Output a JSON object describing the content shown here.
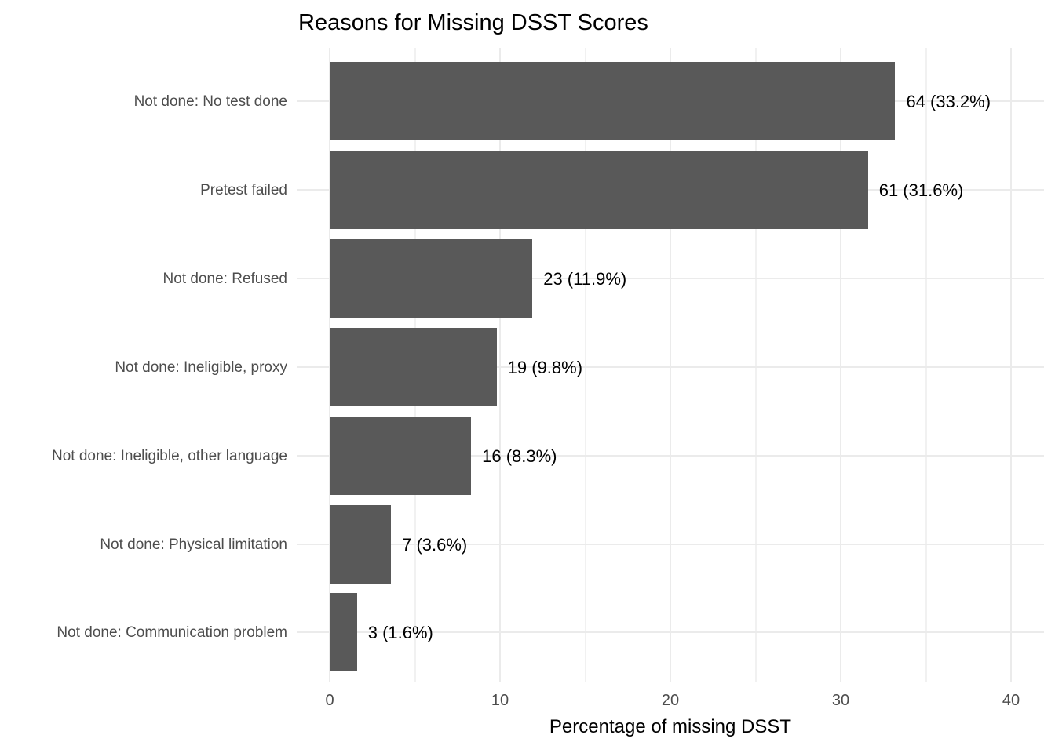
{
  "chart_data": {
    "type": "bar",
    "orientation": "horizontal",
    "title": "Reasons for Missing DSST Scores",
    "xlabel": "Percentage of missing DSST",
    "ylabel": "",
    "categories": [
      "Not done: No test done",
      "Pretest failed",
      "Not done: Refused",
      "Not done: Ineligible, proxy",
      "Not done: Ineligible, other language",
      "Not done: Physical limitation",
      "Not done: Communication problem"
    ],
    "counts": [
      64,
      61,
      23,
      19,
      16,
      7,
      3
    ],
    "values": [
      33.2,
      31.6,
      11.9,
      9.8,
      8.3,
      3.6,
      1.6
    ],
    "bar_labels": [
      "64 (33.2%)",
      "61 (31.6%)",
      "23 (11.9%)",
      "19 (9.8%)",
      "16 (8.3%)",
      "7 (3.6%)",
      "3 (1.6%)"
    ],
    "xlim": [
      0,
      40
    ],
    "x_major_ticks": [
      0,
      10,
      20,
      30,
      40
    ],
    "x_minor_ticks": [
      5,
      15,
      25,
      35
    ],
    "grid": "major-and-minor-vertical, major-horizontal",
    "legend": "none",
    "colors": {
      "bar": "#595959",
      "grid_major": "#ebebeb",
      "grid_minor": "#f1f1f1",
      "axis_text": "#4d4d4d",
      "value_label_text": "#000000",
      "title_text": "#000000",
      "background": "#ffffff"
    }
  }
}
